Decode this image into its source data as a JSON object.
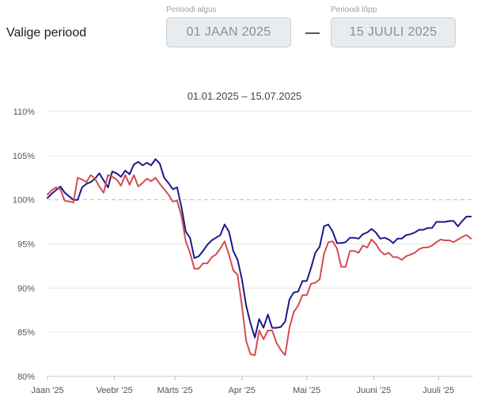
{
  "period": {
    "label": "Valige periood",
    "start_caption": "Perioodi algus",
    "start_value": "01 JAAN 2025",
    "end_caption": "Perioodi lõpp",
    "end_value": "15 JUULI 2025"
  },
  "chart_data": {
    "type": "line",
    "title": "01.01.2025 – 15.07.2025",
    "xlabel": "",
    "ylabel": "",
    "ylim": [
      80,
      110
    ],
    "xlim": [
      0,
      197
    ],
    "y_ticks": [
      80,
      85,
      90,
      95,
      100,
      105,
      110
    ],
    "y_tick_labels": [
      "80%",
      "85%",
      "90%",
      "95%",
      "100%",
      "105%",
      "110%"
    ],
    "x_ticks": [
      0,
      31,
      59,
      90,
      120,
      151,
      181
    ],
    "x_tick_labels": [
      "Jaan '25",
      "Veebr '25",
      "Märts '25",
      "Apr '25",
      "Mai '25",
      "Juuni '25",
      "Juuli '25"
    ],
    "reference_line": 100,
    "grid": true,
    "legend": "none",
    "series": [
      {
        "color": "#1c1a8c",
        "x": [
          0,
          2,
          4,
          6,
          8,
          10,
          12,
          14,
          16,
          18,
          20,
          22,
          24,
          26,
          28,
          30,
          32,
          34,
          36,
          38,
          40,
          42,
          44,
          46,
          48,
          50,
          52,
          54,
          56,
          58,
          60,
          62,
          64,
          66,
          68,
          70,
          72,
          74,
          76,
          78,
          80,
          82,
          84,
          86,
          88,
          90,
          92,
          94,
          96,
          98,
          100,
          102,
          104,
          106,
          108,
          110,
          112,
          114,
          116,
          118,
          120,
          122,
          124,
          126,
          128,
          130,
          132,
          134,
          136,
          138,
          140,
          142,
          144,
          146,
          148,
          150,
          152,
          154,
          156,
          158,
          160,
          162,
          164,
          166,
          168,
          170,
          172,
          174,
          176,
          178,
          180,
          182,
          184,
          186,
          188,
          190,
          192,
          194,
          196
        ],
        "values": [
          100.2,
          100.7,
          101.1,
          101.5,
          100.8,
          100.4,
          100.0,
          100.0,
          101.4,
          101.8,
          102.0,
          102.4,
          103.0,
          102.2,
          101.4,
          103.2,
          103.0,
          102.6,
          103.3,
          102.9,
          104.0,
          104.3,
          103.9,
          104.2,
          103.9,
          104.6,
          104.1,
          102.5,
          101.9,
          101.2,
          101.4,
          99.2,
          96.4,
          95.7,
          93.4,
          93.6,
          94.2,
          94.9,
          95.4,
          95.7,
          96.0,
          97.2,
          96.4,
          94.2,
          93.2,
          91.0,
          88.0,
          86.0,
          84.4,
          86.5,
          85.5,
          87.0,
          85.5,
          85.5,
          85.6,
          86.2,
          88.7,
          89.5,
          89.6,
          90.8,
          90.8,
          92.3,
          94.0,
          94.7,
          97.0,
          97.2,
          96.4,
          95.1,
          95.1,
          95.2,
          95.7,
          95.7,
          95.6,
          96.1,
          96.3,
          96.7,
          96.3,
          95.6,
          95.7,
          95.5,
          95.1,
          95.6,
          95.6,
          96.0,
          96.1,
          96.3,
          96.6,
          96.6,
          96.8,
          96.8,
          97.5,
          97.5,
          97.5,
          97.6,
          97.6,
          97.0,
          97.6,
          98.1,
          98.1
        ]
      },
      {
        "color": "#d64b50",
        "x": [
          0,
          2,
          4,
          6,
          8,
          10,
          12,
          14,
          16,
          18,
          20,
          22,
          24,
          26,
          28,
          30,
          32,
          34,
          36,
          38,
          40,
          42,
          44,
          46,
          48,
          50,
          52,
          54,
          56,
          58,
          60,
          62,
          64,
          66,
          68,
          70,
          72,
          74,
          76,
          78,
          80,
          82,
          84,
          86,
          88,
          90,
          92,
          94,
          96,
          98,
          100,
          102,
          104,
          106,
          108,
          110,
          112,
          114,
          116,
          118,
          120,
          122,
          124,
          126,
          128,
          130,
          132,
          134,
          136,
          138,
          140,
          142,
          144,
          146,
          148,
          150,
          152,
          154,
          156,
          158,
          160,
          162,
          164,
          166,
          168,
          170,
          172,
          174,
          176,
          178,
          180,
          182,
          184,
          186,
          188,
          190,
          192,
          194,
          196
        ],
        "values": [
          100.6,
          101.1,
          101.4,
          101.2,
          99.9,
          99.8,
          99.7,
          102.5,
          102.3,
          102.0,
          102.8,
          102.4,
          101.5,
          100.8,
          102.8,
          102.6,
          102.3,
          101.6,
          102.8,
          101.7,
          102.8,
          101.5,
          101.9,
          102.4,
          102.1,
          102.5,
          101.8,
          101.2,
          100.6,
          99.8,
          99.9,
          98.2,
          95.3,
          94.0,
          92.2,
          92.2,
          92.8,
          92.8,
          93.5,
          93.8,
          94.5,
          95.3,
          93.8,
          92.0,
          91.5,
          88.0,
          84.0,
          82.5,
          82.4,
          85.2,
          84.2,
          85.2,
          85.2,
          83.8,
          83.0,
          82.4,
          85.5,
          87.3,
          88.0,
          89.2,
          89.2,
          90.5,
          90.6,
          91.0,
          93.9,
          95.2,
          95.3,
          94.5,
          92.4,
          92.4,
          94.2,
          94.2,
          94.0,
          94.8,
          94.6,
          95.5,
          95.0,
          94.2,
          93.8,
          94.0,
          93.5,
          93.5,
          93.2,
          93.6,
          93.8,
          94.0,
          94.4,
          94.6,
          94.6,
          94.8,
          95.2,
          95.5,
          95.4,
          95.4,
          95.2,
          95.5,
          95.8,
          96.0,
          95.6
        ]
      }
    ]
  }
}
